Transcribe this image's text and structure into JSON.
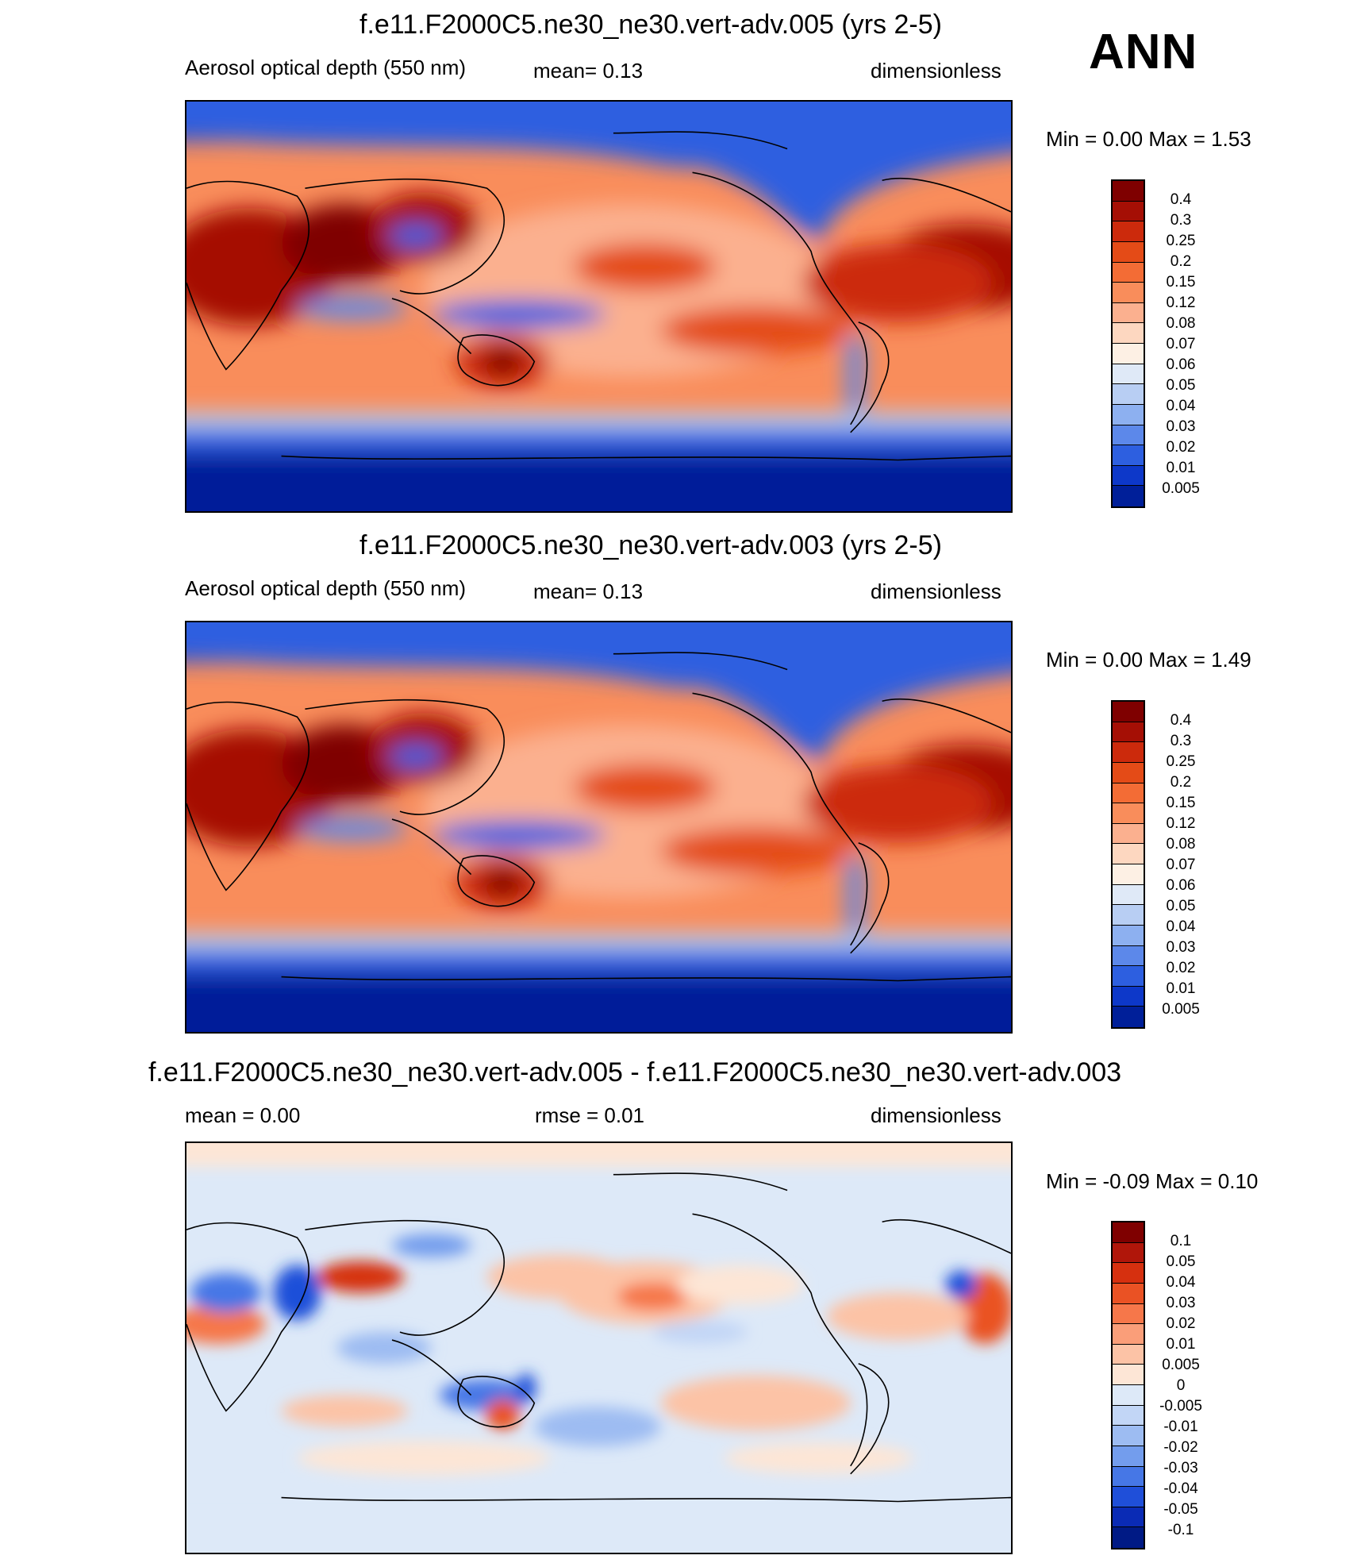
{
  "season": "ANN",
  "panels": [
    {
      "id": "test",
      "title": "f.e11.F2000C5.ne30_ne30.vert-adv.005 (yrs 2-5)",
      "left_label": "Aerosol optical depth (550 nm)",
      "center_label": "mean=   0.13",
      "right_label": "dimensionless",
      "minmax": "Min =    0.00 Max =    1.53",
      "colorbar_levels": [
        "0.4",
        "0.3",
        "0.25",
        "0.2",
        "0.15",
        "0.12",
        "0.08",
        "0.07",
        "0.06",
        "0.05",
        "0.04",
        "0.03",
        "0.02",
        "0.01",
        "0.005"
      ],
      "colorbar_colors": [
        "#7f0000",
        "#a50f05",
        "#cc2a0c",
        "#e44b17",
        "#f36c35",
        "#f98d5b",
        "#fbb08f",
        "#fdd7c0",
        "#fdf0e4",
        "#dfe9f7",
        "#b8cef3",
        "#8db0f0",
        "#5c88ea",
        "#2d5fe0",
        "#0d38c9",
        "#001f99"
      ]
    },
    {
      "id": "control",
      "title": "f.e11.F2000C5.ne30_ne30.vert-adv.003 (yrs 2-5)",
      "left_label": "Aerosol optical depth (550 nm)",
      "center_label": "mean=   0.13",
      "right_label": "dimensionless",
      "minmax": "Min =    0.00 Max =    1.49",
      "colorbar_levels": [
        "0.4",
        "0.3",
        "0.25",
        "0.2",
        "0.15",
        "0.12",
        "0.08",
        "0.07",
        "0.06",
        "0.05",
        "0.04",
        "0.03",
        "0.02",
        "0.01",
        "0.005"
      ],
      "colorbar_colors": [
        "#7f0000",
        "#a50f05",
        "#cc2a0c",
        "#e44b17",
        "#f36c35",
        "#f98d5b",
        "#fbb08f",
        "#fdd7c0",
        "#fdf0e4",
        "#dfe9f7",
        "#b8cef3",
        "#8db0f0",
        "#5c88ea",
        "#2d5fe0",
        "#0d38c9",
        "#001f99"
      ]
    },
    {
      "id": "diff",
      "title": "f.e11.F2000C5.ne30_ne30.vert-adv.005 - f.e11.F2000C5.ne30_ne30.vert-adv.003",
      "left_label": "mean =    0.00",
      "center_label": "rmse =    0.01",
      "right_label": "dimensionless",
      "minmax": "Min =  -0.09 Max =    0.10",
      "colorbar_levels": [
        "0.1",
        "0.05",
        "0.04",
        "0.03",
        "0.02",
        "0.01",
        "0.005",
        "0",
        "-0.005",
        "-0.01",
        "-0.02",
        "-0.03",
        "-0.04",
        "-0.05",
        "-0.1"
      ],
      "colorbar_colors": [
        "#7f0000",
        "#b0160a",
        "#d6300f",
        "#ea5224",
        "#f6774a",
        "#fa9e79",
        "#fcc3a6",
        "#fde6d6",
        "#dde9f8",
        "#c2d6f6",
        "#9dbcf2",
        "#739ded",
        "#4677e6",
        "#1f4fd9",
        "#0a2bb5",
        "#001a85"
      ]
    }
  ]
}
